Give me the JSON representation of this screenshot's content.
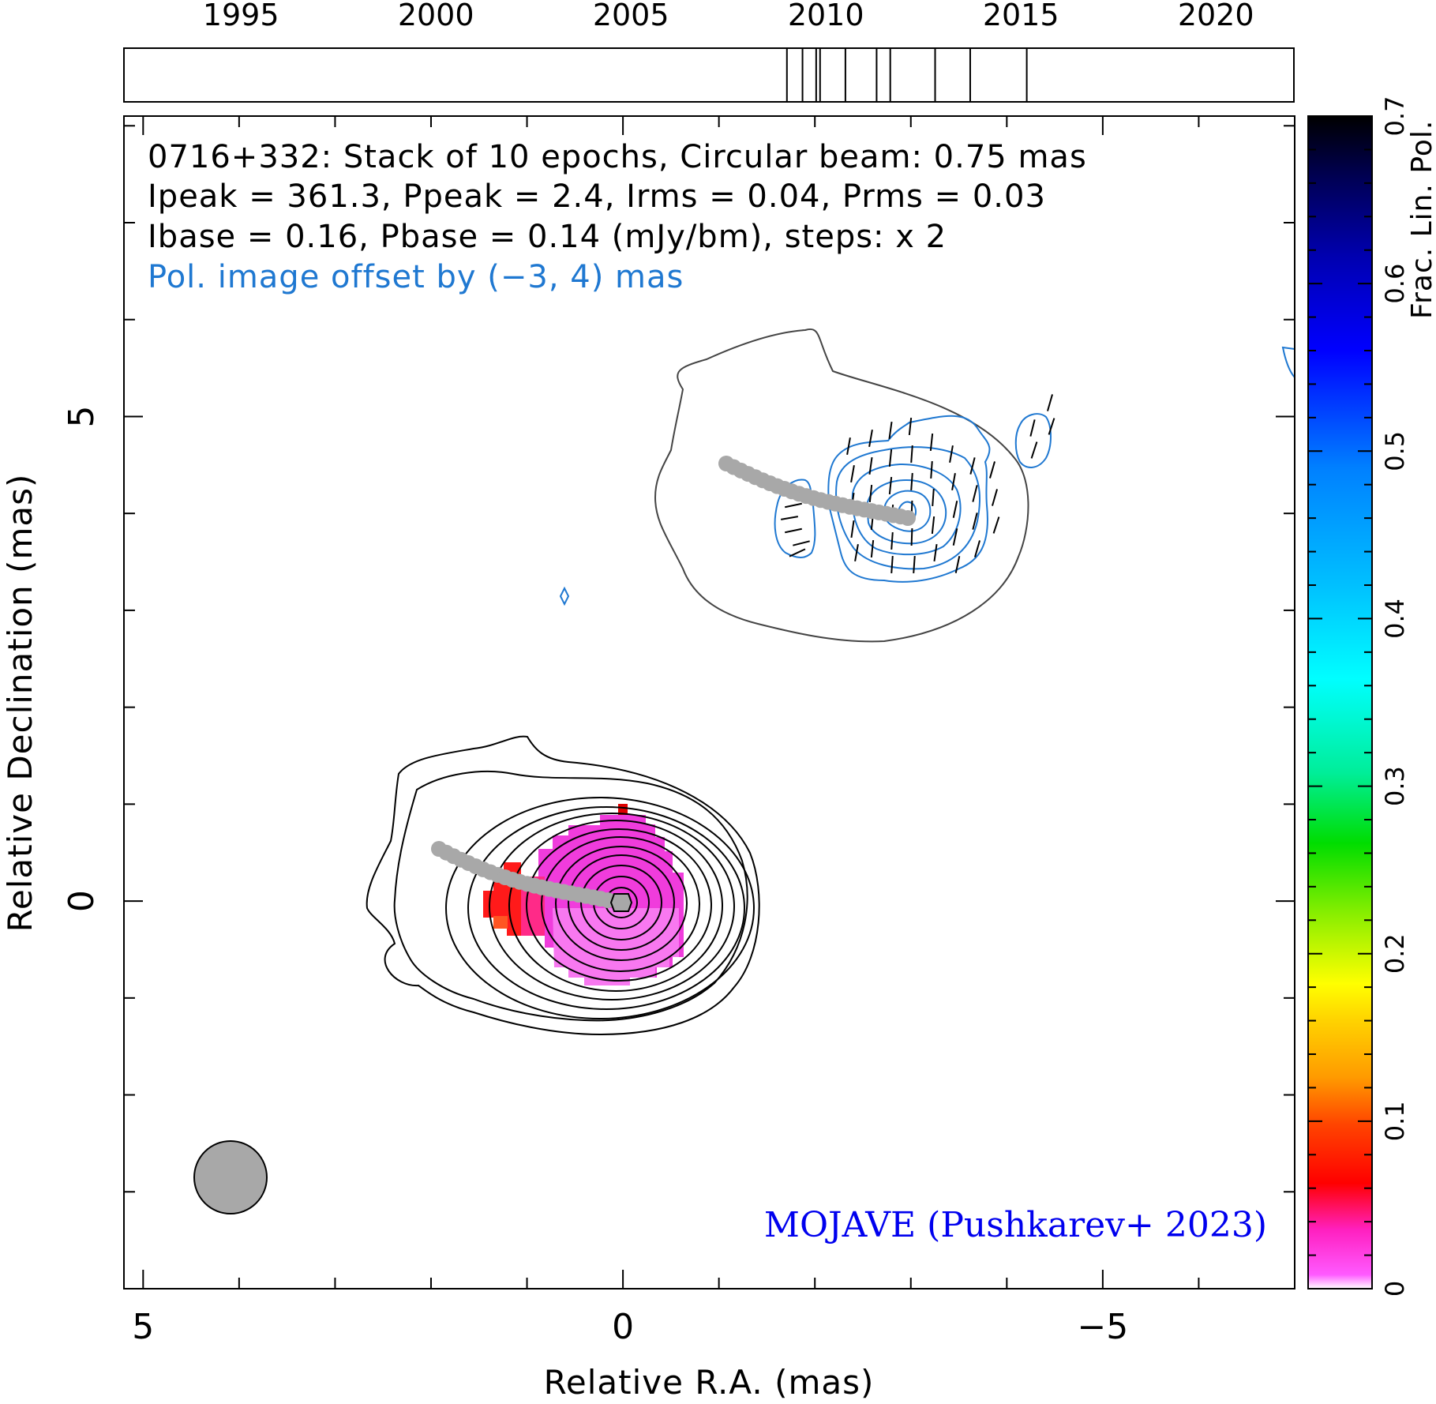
{
  "chart_data": {
    "type": "contour-map",
    "header": {
      "line1": "0716+332: Stack of 10 epochs, Circular beam: 0.75 mas",
      "line2": "Ipeak = 361.3, Ppeak = 2.4, Irms = 0.04, Prms = 0.03",
      "line3": "Ibase = 0.16, Pbase = 0.14 (mJy/bm), steps: x 2",
      "line4": "Pol. image offset by (−3, 4) mas"
    },
    "credit": "MOJAVE (Pushkarev+ 2023)",
    "xlabel": "Relative R.A. (mas)",
    "ylabel": "Relative Declination (mas)",
    "xlim": [
      5.2,
      -7.0
    ],
    "ylim": [
      -4.0,
      8.1
    ],
    "x_ticks": [
      {
        "v": 5,
        "label": "5"
      },
      {
        "v": 0,
        "label": "0"
      },
      {
        "v": -5,
        "label": "−5"
      }
    ],
    "y_ticks": [
      {
        "v": 0,
        "label": "0"
      },
      {
        "v": 5,
        "label": "5"
      }
    ],
    "timeline": {
      "range": [
        1992.0,
        2022.0
      ],
      "ticks": [
        {
          "v": 1995,
          "label": "1995"
        },
        {
          "v": 2000,
          "label": "2000"
        },
        {
          "v": 2005,
          "label": "2005"
        },
        {
          "v": 2010,
          "label": "2010"
        },
        {
          "v": 2015,
          "label": "2015"
        },
        {
          "v": 2020,
          "label": "2020"
        }
      ],
      "epochs": [
        2009.0,
        2009.4,
        2009.75,
        2009.85,
        2010.5,
        2011.3,
        2011.65,
        2012.8,
        2013.7,
        2015.15
      ]
    },
    "colorbar": {
      "label": "Frac. Lin. Pol.",
      "range": [
        0,
        0.7
      ],
      "ticks": [
        {
          "v": 0,
          "label": "0"
        },
        {
          "v": 0.1,
          "label": "0.1"
        },
        {
          "v": 0.2,
          "label": "0.2"
        },
        {
          "v": 0.3,
          "label": "0.3"
        },
        {
          "v": 0.4,
          "label": "0.4"
        },
        {
          "v": 0.5,
          "label": "0.5"
        },
        {
          "v": 0.6,
          "label": "0.6"
        },
        {
          "v": 0.7,
          "label": "0.7"
        }
      ]
    },
    "beam": {
      "x": 4.0,
      "y": -2.87,
      "diameter_mas": 0.75
    },
    "colors": {
      "total_intensity": "#000000",
      "polarization": "#1f78d1",
      "offset_text": "#1f78d1",
      "credit": "#0000ee",
      "trajectory": "#a8a8a8",
      "beam_fill": "#a8a8a8"
    }
  }
}
